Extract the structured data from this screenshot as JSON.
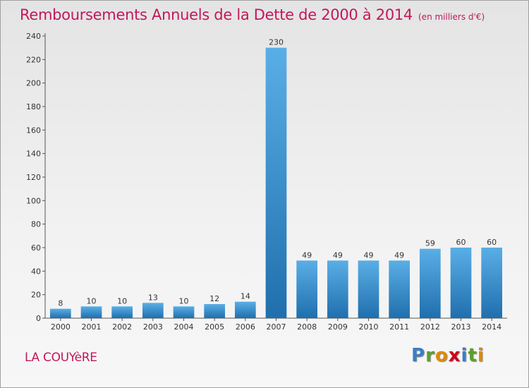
{
  "title": "Remboursements Annuels de la Dette de 2000 à 2014",
  "subtitle": "(en milliers d'€)",
  "commune": "LA COUYèRE",
  "logo": {
    "letters": [
      {
        "ch": "P",
        "color": "#3b7fc4"
      },
      {
        "ch": "r",
        "color": "#5aa02c"
      },
      {
        "ch": "o",
        "color": "#e08a00"
      },
      {
        "ch": "x",
        "color": "#d0021b"
      },
      {
        "ch": "i",
        "color": "#3b7fc4"
      },
      {
        "ch": "t",
        "color": "#5aa02c"
      },
      {
        "ch": "i",
        "color": "#e08a00"
      }
    ]
  },
  "chart_data": {
    "type": "bar",
    "categories": [
      "2000",
      "2001",
      "2002",
      "2003",
      "2004",
      "2005",
      "2006",
      "2007",
      "2008",
      "2009",
      "2010",
      "2011",
      "2012",
      "2013",
      "2014"
    ],
    "values": [
      8,
      10,
      10,
      13,
      10,
      12,
      14,
      230,
      49,
      49,
      49,
      49,
      59,
      60,
      60
    ],
    "ylim": [
      0,
      240
    ],
    "yticks": [
      0,
      20,
      40,
      60,
      80,
      100,
      120,
      140,
      160,
      180,
      200,
      220,
      240
    ],
    "grid": false,
    "colors": {
      "bar_light": "#5aaee6",
      "bar_dark": "#1f6fad",
      "axis": "#555555",
      "text": "#333333"
    }
  }
}
